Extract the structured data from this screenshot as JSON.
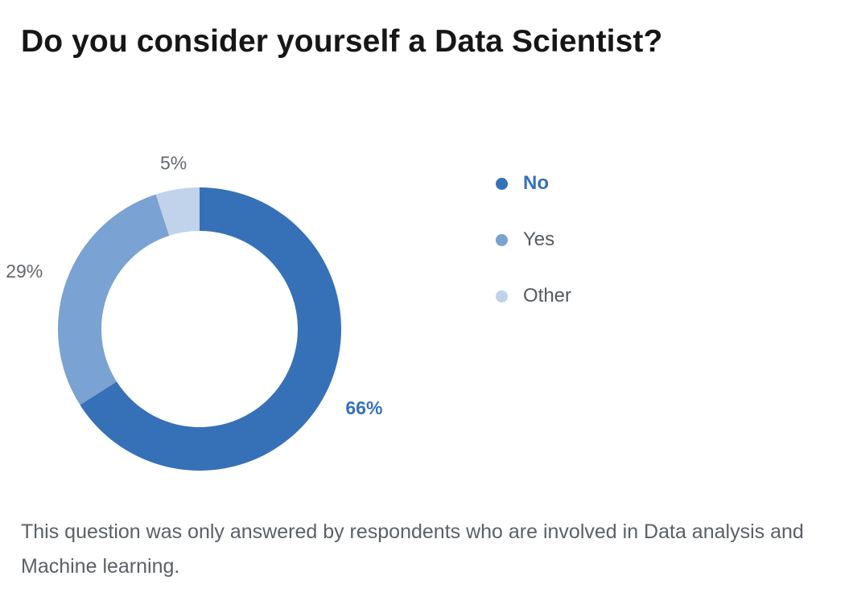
{
  "title": "Do you consider yourself a Data Scientist?",
  "footnote": "This question was only answered by respondents who are involved in Data analysis and Machine learning.",
  "chart_data": {
    "type": "pie",
    "style": "donut",
    "title": "Do you consider yourself a Data Scientist?",
    "categories": [
      "No",
      "Yes",
      "Other"
    ],
    "values": [
      66,
      29,
      5
    ],
    "value_labels": [
      "66%",
      "29%",
      "5%"
    ],
    "colors": [
      "#3671b8",
      "#7aa2d2",
      "#c0d3ea"
    ],
    "highlighted": "No",
    "highlight_color": "#3671b8",
    "muted_label_color": "#63676d",
    "legend_position": "right"
  }
}
